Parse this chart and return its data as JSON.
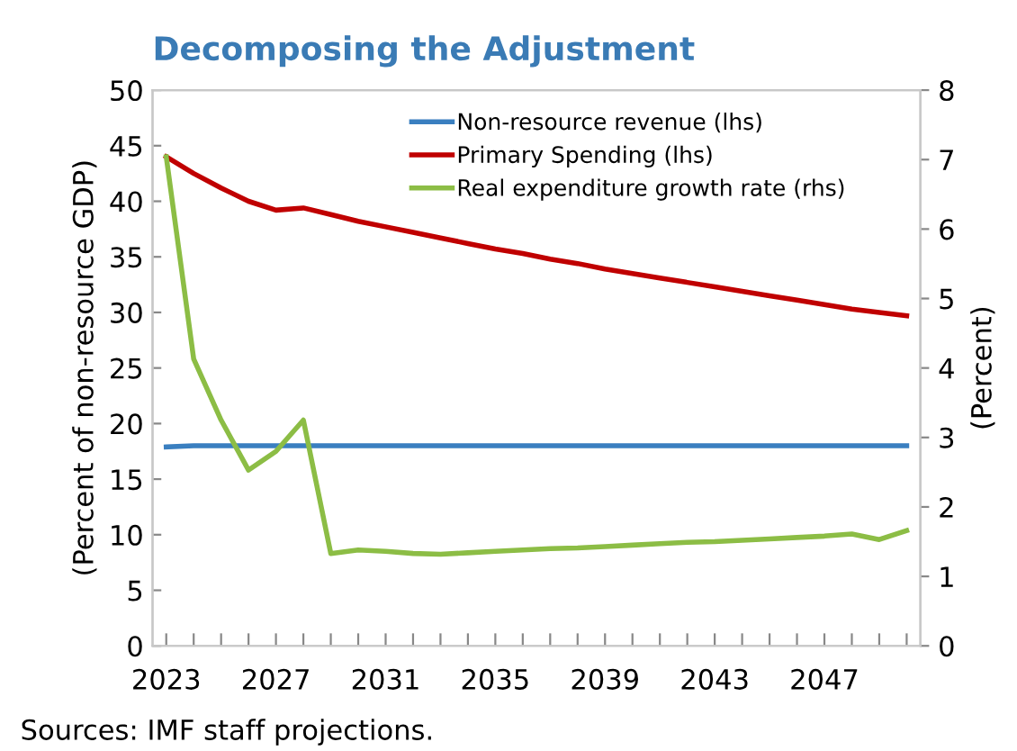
{
  "chart_data": {
    "type": "line",
    "title": "Decomposing the Adjustment",
    "ylabel": "(Percent of non-resource GDP)",
    "y2label": "(Percent)",
    "x": [
      2023,
      2024,
      2025,
      2026,
      2027,
      2028,
      2029,
      2030,
      2031,
      2032,
      2033,
      2034,
      2035,
      2036,
      2037,
      2038,
      2039,
      2040,
      2041,
      2042,
      2043,
      2044,
      2045,
      2046,
      2047,
      2048,
      2049,
      2050
    ],
    "series": [
      {
        "name": "Non-resource revenue (lhs)",
        "color": "#3a7fc0",
        "values": [
          17.9,
          18,
          18,
          18,
          18,
          18,
          18,
          18,
          18,
          18,
          18,
          18,
          18,
          18,
          18,
          18,
          18,
          18,
          18,
          18,
          18,
          18,
          18,
          18,
          18,
          18,
          18,
          18
        ]
      },
      {
        "name": "Primary Spending (lhs)",
        "color": "#c00000",
        "values": [
          44,
          42.5,
          41.2,
          40,
          39.2,
          39.4,
          38.8,
          38.2,
          37.7,
          37.2,
          36.7,
          36.2,
          35.7,
          35.3,
          34.8,
          34.4,
          33.9,
          33.5,
          33.1,
          32.7,
          32.3,
          31.9,
          31.5,
          31.1,
          30.7,
          30.3,
          30.0,
          29.7
        ]
      },
      {
        "name": "Real expenditure growth rate (rhs)",
        "color": "#8cbd45",
        "axis": "y2",
        "values": [
          7.04,
          4.13,
          3.25,
          2.53,
          2.8,
          3.25,
          1.33,
          1.38,
          1.36,
          1.33,
          1.32,
          1.34,
          1.36,
          1.38,
          1.4,
          1.41,
          1.43,
          1.45,
          1.47,
          1.49,
          1.5,
          1.52,
          1.54,
          1.56,
          1.58,
          1.61,
          1.53,
          1.66
        ]
      }
    ],
    "xlim": [
      2022.5,
      2050.5
    ],
    "xticks": [
      2023,
      {
        "value": 2024,
        "label": null
      },
      {
        "value": 2025,
        "label": null
      },
      {
        "value": 2026,
        "label": null
      },
      2027,
      {
        "value": 2028,
        "label": null
      },
      {
        "value": 2029,
        "label": null
      },
      {
        "value": 2030,
        "label": null
      },
      2031,
      {
        "value": 2032,
        "label": null
      },
      {
        "value": 2033,
        "label": null
      },
      {
        "value": 2034,
        "label": null
      },
      2035,
      {
        "value": 2036,
        "label": null
      },
      {
        "value": 2037,
        "label": null
      },
      {
        "value": 2038,
        "label": null
      },
      2039,
      {
        "value": 2040,
        "label": null
      },
      {
        "value": 2041,
        "label": null
      },
      {
        "value": 2042,
        "label": null
      },
      2043,
      {
        "value": 2044,
        "label": null
      },
      {
        "value": 2045,
        "label": null
      },
      {
        "value": 2046,
        "label": null
      },
      2047,
      {
        "value": 2048,
        "label": null
      },
      {
        "value": 2049,
        "label": null
      },
      {
        "value": 2050,
        "label": null
      }
    ],
    "ylim": [
      0,
      50
    ],
    "yticks": [
      0,
      5,
      10,
      15,
      20,
      25,
      30,
      35,
      40,
      45,
      50
    ],
    "y2lim": [
      0,
      8
    ],
    "y2ticks": [
      0,
      1,
      2,
      3,
      4,
      5,
      6,
      7,
      8
    ],
    "legend": "top",
    "grid": false,
    "marker": "none",
    "line_style": "solid",
    "annotations": [
      "Sources: IMF staff projections."
    ]
  }
}
